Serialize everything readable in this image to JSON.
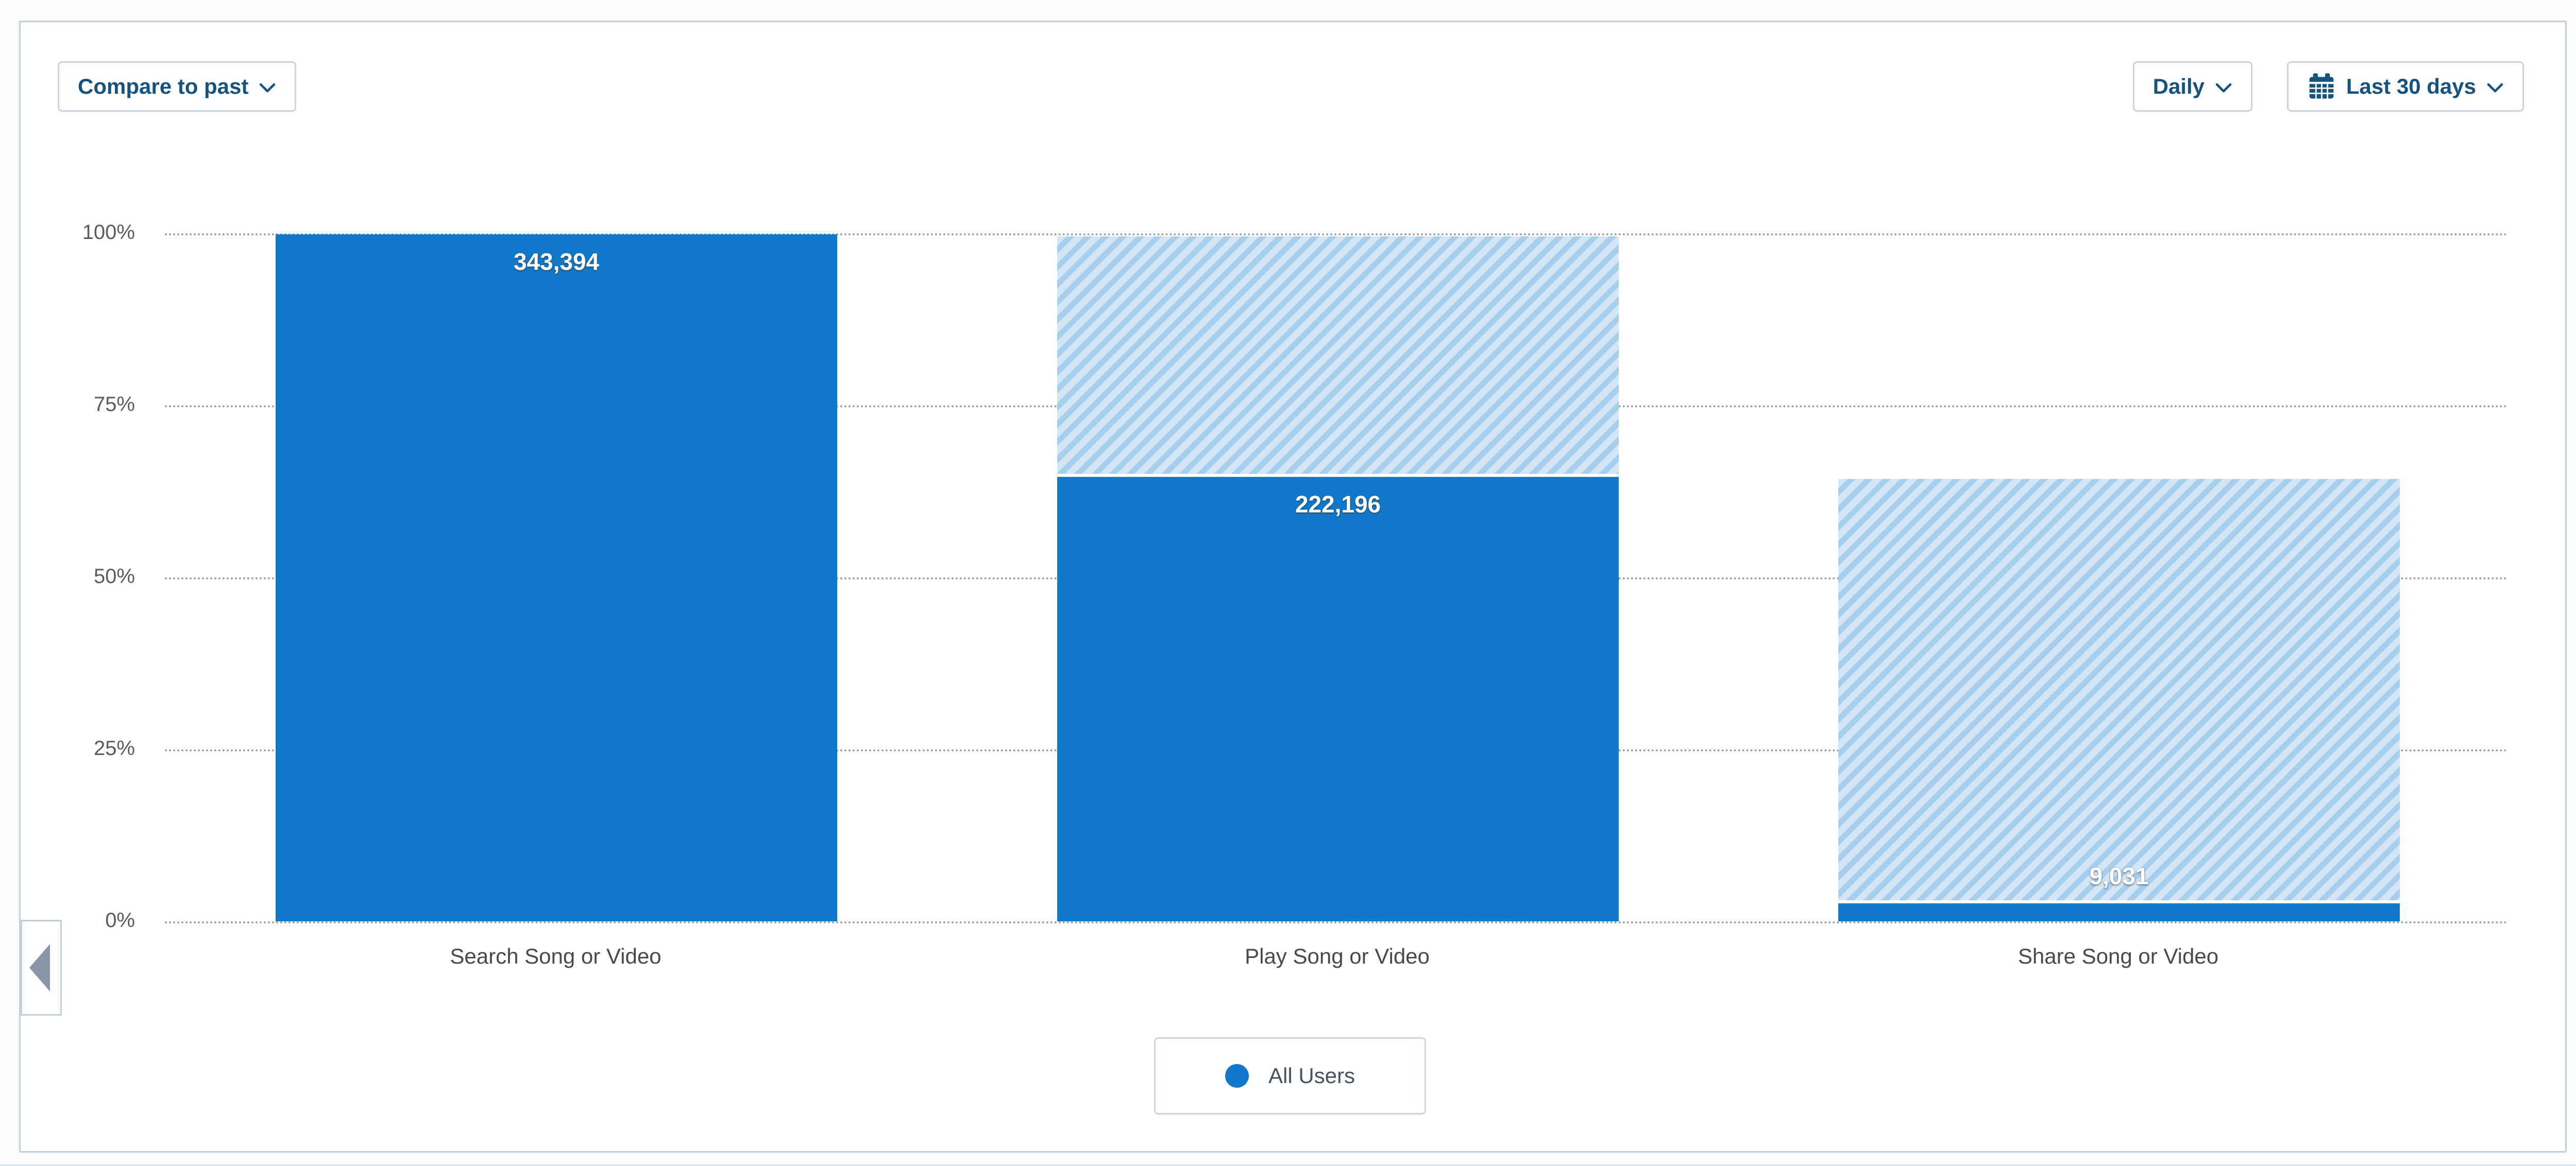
{
  "panel": {
    "controls": {
      "compare_label": "Compare to past",
      "granularity_label": "Daily",
      "date_range_label": "Last 30 days"
    },
    "legend": {
      "label": "All Users",
      "dot_color": "#1179c9"
    },
    "icons": {
      "chevron": "chevron-down-icon",
      "calendar": "calendar-icon",
      "collapse": "collapse-left-triangle-icon",
      "series_dot": "series-dot-icon"
    },
    "colors": {
      "bar": "#1179c9",
      "hatch_light": "#d3e6f5",
      "hatch_dark": "#a6cfee",
      "button_text": "#15537e",
      "panel_border": "#c6cfd6"
    }
  },
  "chart_data": {
    "type": "bar",
    "subtype": "funnel-conversion",
    "title": "",
    "categories": [
      "Search Song or Video",
      "Play Song or Video",
      "Share Song or Video"
    ],
    "series": [
      {
        "name": "All Users",
        "counts": [
          343394,
          222196,
          9031
        ],
        "percents_of_first": [
          100,
          64.7,
          2.6
        ]
      }
    ],
    "value_labels": [
      "343,394",
      "222,196",
      "9,031"
    ],
    "yticks": [
      "100%",
      "75%",
      "50%",
      "25%",
      "0%"
    ],
    "ylim": [
      0,
      100
    ],
    "xlabel": "",
    "ylabel": "",
    "grid": "horizontal-dotted",
    "legend_position": "bottom-center",
    "hatch_note": "hatched region above each bar shows drop-off from previous funnel step"
  }
}
